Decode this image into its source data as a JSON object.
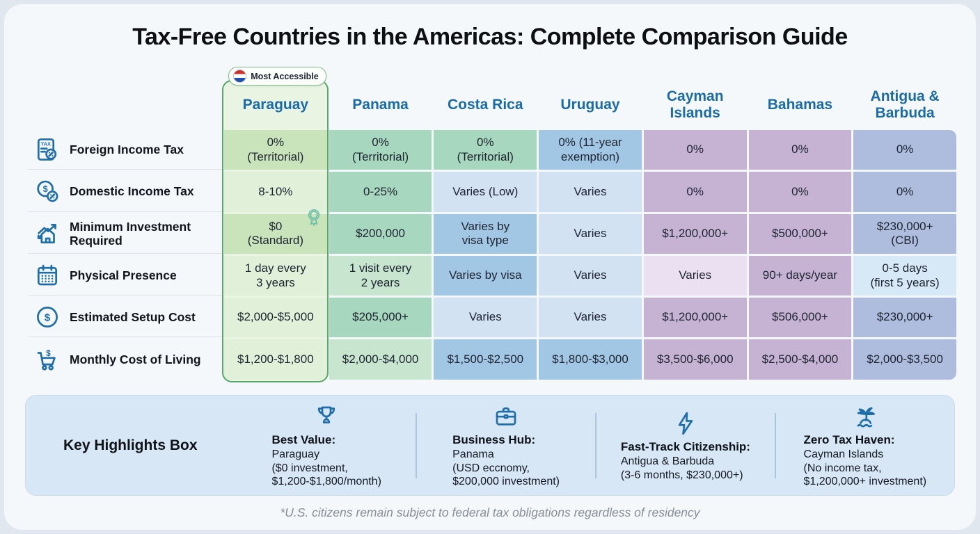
{
  "title": "Tax-Free Countries in the Americas: Complete Comparison Guide",
  "badge": {
    "label": "Most Accessible"
  },
  "palette": {
    "pg_dark": "#c9e4bb",
    "pg_light": "#e1f1d9",
    "green_mid": "#a7d7be",
    "green_soft": "#c8e5d0",
    "blue_mid": "#a2c7e5",
    "blue_soft": "#d2e2f3",
    "mauve": "#c6b3d4",
    "mauve_light": "#eae0f1",
    "violet": "#aebcdd",
    "sky_light": "#d7e8f6",
    "accent_green": "#57a86b",
    "header_blue": "#1b6ba8",
    "icon_blue": "#1f6ea9"
  },
  "table": {
    "columns": [
      {
        "name": "Paraguay",
        "highlighted": true
      },
      {
        "name": "Panama"
      },
      {
        "name": "Costa Rica"
      },
      {
        "name": "Uruguay"
      },
      {
        "name": "Cayman\nIslands"
      },
      {
        "name": "Bahamas"
      },
      {
        "name": "Antigua &\nBarbuda"
      }
    ],
    "rows": [
      {
        "label": "Foreign Income Tax",
        "icon": "tax-document-icon",
        "cells": [
          {
            "text": "0%\n(Territorial)",
            "tone": "pg_dark"
          },
          {
            "text": "0%\n(Territorial)",
            "tone": "green_mid"
          },
          {
            "text": "0%\n(Territorial)",
            "tone": "green_mid"
          },
          {
            "text": "0% (11-year\nexemption)",
            "tone": "blue_mid"
          },
          {
            "text": "0%",
            "tone": "mauve"
          },
          {
            "text": "0%",
            "tone": "mauve"
          },
          {
            "text": "0%",
            "tone": "violet"
          }
        ]
      },
      {
        "label": "Domestic Income Tax",
        "icon": "dollar-percent-icon",
        "cells": [
          {
            "text": "8-10%",
            "tone": "pg_light"
          },
          {
            "text": "0-25%",
            "tone": "green_mid"
          },
          {
            "text": "Varies (Low)",
            "tone": "blue_soft"
          },
          {
            "text": "Varies",
            "tone": "blue_soft"
          },
          {
            "text": "0%",
            "tone": "mauve"
          },
          {
            "text": "0%",
            "tone": "mauve"
          },
          {
            "text": "0%",
            "tone": "violet"
          }
        ]
      },
      {
        "label": "Minimum Investment Required",
        "icon": "house-growth-icon",
        "cells": [
          {
            "text": "$0\n(Standard)",
            "tone": "pg_dark",
            "award": true
          },
          {
            "text": "$200,000",
            "tone": "green_mid"
          },
          {
            "text": "Varies by\nvisa type",
            "tone": "blue_mid"
          },
          {
            "text": "Varies",
            "tone": "blue_soft"
          },
          {
            "text": "$1,200,000+",
            "tone": "mauve"
          },
          {
            "text": "$500,000+",
            "tone": "mauve"
          },
          {
            "text": "$230,000+\n(CBI)",
            "tone": "violet"
          }
        ]
      },
      {
        "label": "Physical Presence",
        "icon": "calendar-icon",
        "cells": [
          {
            "text": "1 day every\n3 years",
            "tone": "pg_light"
          },
          {
            "text": "1 visit every\n2 years",
            "tone": "green_soft"
          },
          {
            "text": "Varies by visa",
            "tone": "blue_mid"
          },
          {
            "text": "Varies",
            "tone": "blue_soft"
          },
          {
            "text": "Varies",
            "tone": "mauve_light"
          },
          {
            "text": "90+ days/year",
            "tone": "mauve"
          },
          {
            "text": "0-5 days\n(first 5 years)",
            "tone": "sky_light"
          }
        ]
      },
      {
        "label": "Estimated Setup Cost",
        "icon": "dollar-circle-icon",
        "cells": [
          {
            "text": "$2,000-$5,000",
            "tone": "pg_light"
          },
          {
            "text": "$205,000+",
            "tone": "green_mid"
          },
          {
            "text": "Varies",
            "tone": "blue_soft"
          },
          {
            "text": "Varies",
            "tone": "blue_soft"
          },
          {
            "text": "$1,200,000+",
            "tone": "mauve"
          },
          {
            "text": "$506,000+",
            "tone": "mauve"
          },
          {
            "text": "$230,000+",
            "tone": "violet"
          }
        ]
      },
      {
        "label": "Monthly Cost of Living",
        "icon": "cart-dollar-icon",
        "cells": [
          {
            "text": "$1,200-$1,800",
            "tone": "pg_light"
          },
          {
            "text": "$2,000-$4,000",
            "tone": "green_soft"
          },
          {
            "text": "$1,500-$2,500",
            "tone": "blue_mid"
          },
          {
            "text": "$1,800-$3,000",
            "tone": "blue_mid"
          },
          {
            "text": "$3,500-$6,000",
            "tone": "mauve"
          },
          {
            "text": "$2,500-$4,000",
            "tone": "mauve"
          },
          {
            "text": "$2,000-$3,500",
            "tone": "violet"
          }
        ]
      }
    ]
  },
  "highlights": {
    "box_label": "Key Highlights Box",
    "items": [
      {
        "icon": "trophy-icon",
        "title": "Best Value:",
        "lines": [
          "Paraguay",
          "($0 investment,",
          "$1,200-$1,800/month)"
        ]
      },
      {
        "icon": "briefcase-icon",
        "title": "Business Hub:",
        "lines": [
          "Panama",
          "(USD eccnomy,",
          "$200,000 investment)"
        ]
      },
      {
        "icon": "lightning-icon",
        "title": "Fast-Track Citizenship:",
        "lines": [
          "Antigua & Barbuda",
          "(3-6 months, $230,000+)"
        ]
      },
      {
        "icon": "palm-island-icon",
        "title": "Zero Tax Haven:",
        "lines": [
          "Cayman Islands",
          "(No income tax,",
          "$1,200,000+ investment)"
        ]
      }
    ]
  },
  "footnote": "*U.S. citizens remain subject to federal tax obligations regardless of residency",
  "chart_data": {
    "type": "table",
    "title": "Tax-Free Countries in the Americas: Complete Comparison Guide",
    "columns": [
      "Paraguay",
      "Panama",
      "Costa Rica",
      "Uruguay",
      "Cayman Islands",
      "Bahamas",
      "Antigua & Barbuda"
    ],
    "rows": [
      {
        "label": "Foreign Income Tax",
        "values": [
          "0% (Territorial)",
          "0% (Territorial)",
          "0% (Territorial)",
          "0% (11-year exemption)",
          "0%",
          "0%",
          "0%"
        ]
      },
      {
        "label": "Domestic Income Tax",
        "values": [
          "8-10%",
          "0-25%",
          "Varies (Low)",
          "Varies",
          "0%",
          "0%",
          "0%"
        ]
      },
      {
        "label": "Minimum Investment Required",
        "values": [
          "$0 (Standard)",
          "$200,000",
          "Varies by visa type",
          "Varies",
          "$1,200,000+",
          "$500,000+",
          "$230,000+ (CBI)"
        ]
      },
      {
        "label": "Physical Presence",
        "values": [
          "1 day every 3 years",
          "1 visit every 2 years",
          "Varies by visa",
          "Varies",
          "Varies",
          "90+ days/year",
          "0-5 days (first 5 years)"
        ]
      },
      {
        "label": "Estimated Setup Cost",
        "values": [
          "$2,000-$5,000",
          "$205,000+",
          "Varies",
          "Varies",
          "$1,200,000+",
          "$506,000+",
          "$230,000+"
        ]
      },
      {
        "label": "Monthly Cost of Living",
        "values": [
          "$1,200-$1,800",
          "$2,000-$4,000",
          "$1,500-$2,500",
          "$1,800-$3,000",
          "$3,500-$6,000",
          "$2,500-$4,000",
          "$2,000-$3,500"
        ]
      }
    ],
    "annotations": [
      "Most Accessible: Paraguay",
      "*U.S. citizens remain subject to federal tax obligations regardless of residency"
    ]
  }
}
